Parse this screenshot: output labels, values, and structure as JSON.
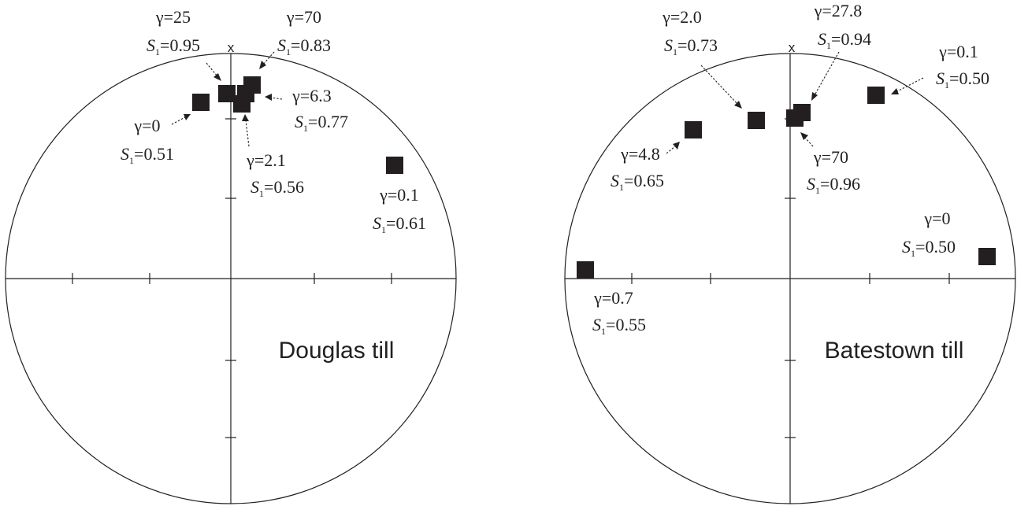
{
  "plots": [
    {
      "name": "Douglas till",
      "north_mark": "x",
      "points": [
        {
          "gamma": "γ=25",
          "s_prefix": "S",
          "s_sub": "1",
          "s_value": "=0.95"
        },
        {
          "gamma": "γ=70",
          "s_prefix": "S",
          "s_sub": "1",
          "s_value": "=0.83"
        },
        {
          "gamma": "γ=6.3",
          "s_prefix": "S",
          "s_sub": "1",
          "s_value": "=0.77"
        },
        {
          "gamma": "γ=0",
          "s_prefix": "S",
          "s_sub": "1",
          "s_value": "=0.51"
        },
        {
          "gamma": "γ=2.1",
          "s_prefix": "S",
          "s_sub": "1",
          "s_value": "=0.56"
        },
        {
          "gamma": "γ=0.1",
          "s_prefix": "S",
          "s_sub": "1",
          "s_value": "=0.61"
        }
      ]
    },
    {
      "name": "Batestown till",
      "north_mark": "x",
      "points": [
        {
          "gamma": "γ=2.0",
          "s_prefix": "S",
          "s_sub": "1",
          "s_value": "=0.73"
        },
        {
          "gamma": "γ=27.8",
          "s_prefix": "S",
          "s_sub": "1",
          "s_value": "=0.94"
        },
        {
          "gamma": "γ=0.1",
          "s_prefix": "S",
          "s_sub": "1",
          "s_value": "=0.50"
        },
        {
          "gamma": "γ=4.8",
          "s_prefix": "S",
          "s_sub": "1",
          "s_value": "=0.65"
        },
        {
          "gamma": "γ=70",
          "s_prefix": "S",
          "s_sub": "1",
          "s_value": "=0.96"
        },
        {
          "gamma": "γ=0",
          "s_prefix": "S",
          "s_sub": "1",
          "s_value": "=0.50"
        },
        {
          "gamma": "γ=0.7",
          "s_prefix": "S",
          "s_sub": "1",
          "s_value": "=0.55"
        }
      ]
    }
  ]
}
